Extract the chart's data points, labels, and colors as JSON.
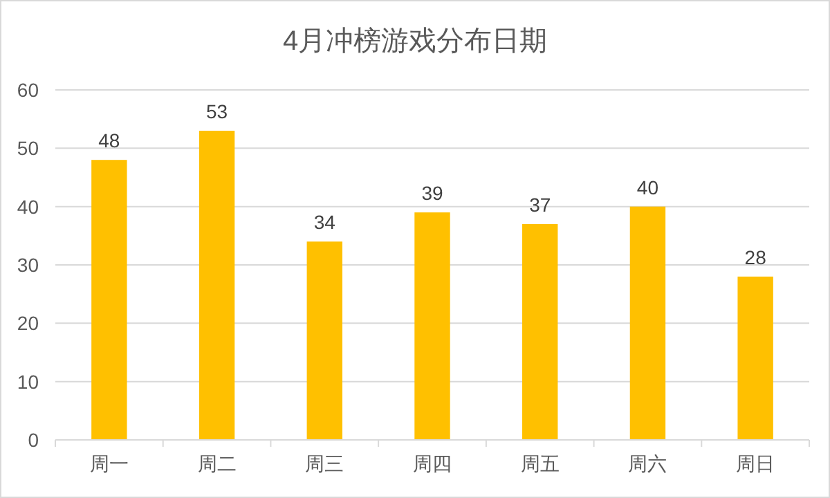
{
  "chart_data": {
    "type": "bar",
    "title": "4月冲榜游戏分布日期",
    "categories": [
      "周一",
      "周二",
      "周三",
      "周四",
      "周五",
      "周六",
      "周日"
    ],
    "values": [
      48,
      53,
      34,
      39,
      37,
      40,
      28
    ],
    "color": "#ffc000",
    "ylim": [
      0,
      60
    ],
    "yticks": [
      0,
      10,
      20,
      30,
      40,
      50,
      60
    ],
    "grid": "y",
    "data_labels": true
  }
}
